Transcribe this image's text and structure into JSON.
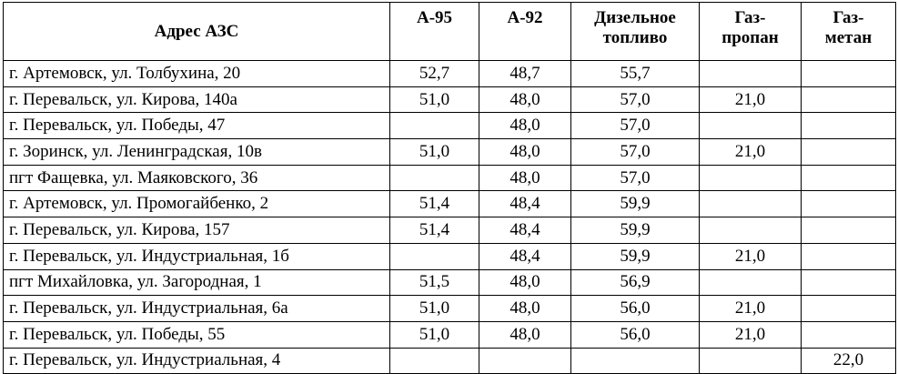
{
  "table": {
    "header": [
      "Адрес АЗС",
      "А-95",
      "А-92",
      "Дизельное\nтопливо",
      "Газ-\nпропан",
      "Газ-\nметан"
    ],
    "rows": [
      [
        "г. Артемовск, ул. Толбухина, 20",
        "52,7",
        "48,7",
        "55,7",
        null,
        null
      ],
      [
        "г. Перевальск, ул. Кирова, 140а",
        "51,0",
        "48,0",
        "57,0",
        "21,0",
        null
      ],
      [
        "г. Перевальск,  ул. Победы, 47",
        null,
        "48,0",
        "57,0",
        null,
        null
      ],
      [
        "г. Зоринск, ул. Ленинградская, 10в",
        "51,0",
        "48,0",
        "57,0",
        "21,0",
        null
      ],
      [
        "пгт Фащевка, ул. Маяковского, 36",
        null,
        "48,0",
        "57,0",
        null,
        null
      ],
      [
        "г. Артемовск, ул. Промогайбенко, 2",
        "51,4",
        "48,4",
        "59,9",
        null,
        null
      ],
      [
        "г. Перевальск, ул. Кирова, 157",
        "51,4",
        "48,4",
        "59,9",
        null,
        null
      ],
      [
        "г. Перевальск, ул. Индустриальная, 1б",
        null,
        "48,4",
        "59,9",
        "21,0",
        null
      ],
      [
        "пгт Михайловка, ул. Загородная, 1",
        "51,5",
        "48,0",
        "56,9",
        null,
        null
      ],
      [
        "г. Перевальск, ул. Индустриальная, 6а",
        "51,0",
        "48,0",
        "56,0",
        "21,0",
        null
      ],
      [
        "г. Перевальск, ул. Победы, 55",
        "51,0",
        "48,0",
        "56,0",
        "21,0",
        null
      ],
      [
        "г. Перевальск, ул. Индустриальная, 4",
        null,
        null,
        null,
        null,
        "22,0"
      ]
    ]
  }
}
